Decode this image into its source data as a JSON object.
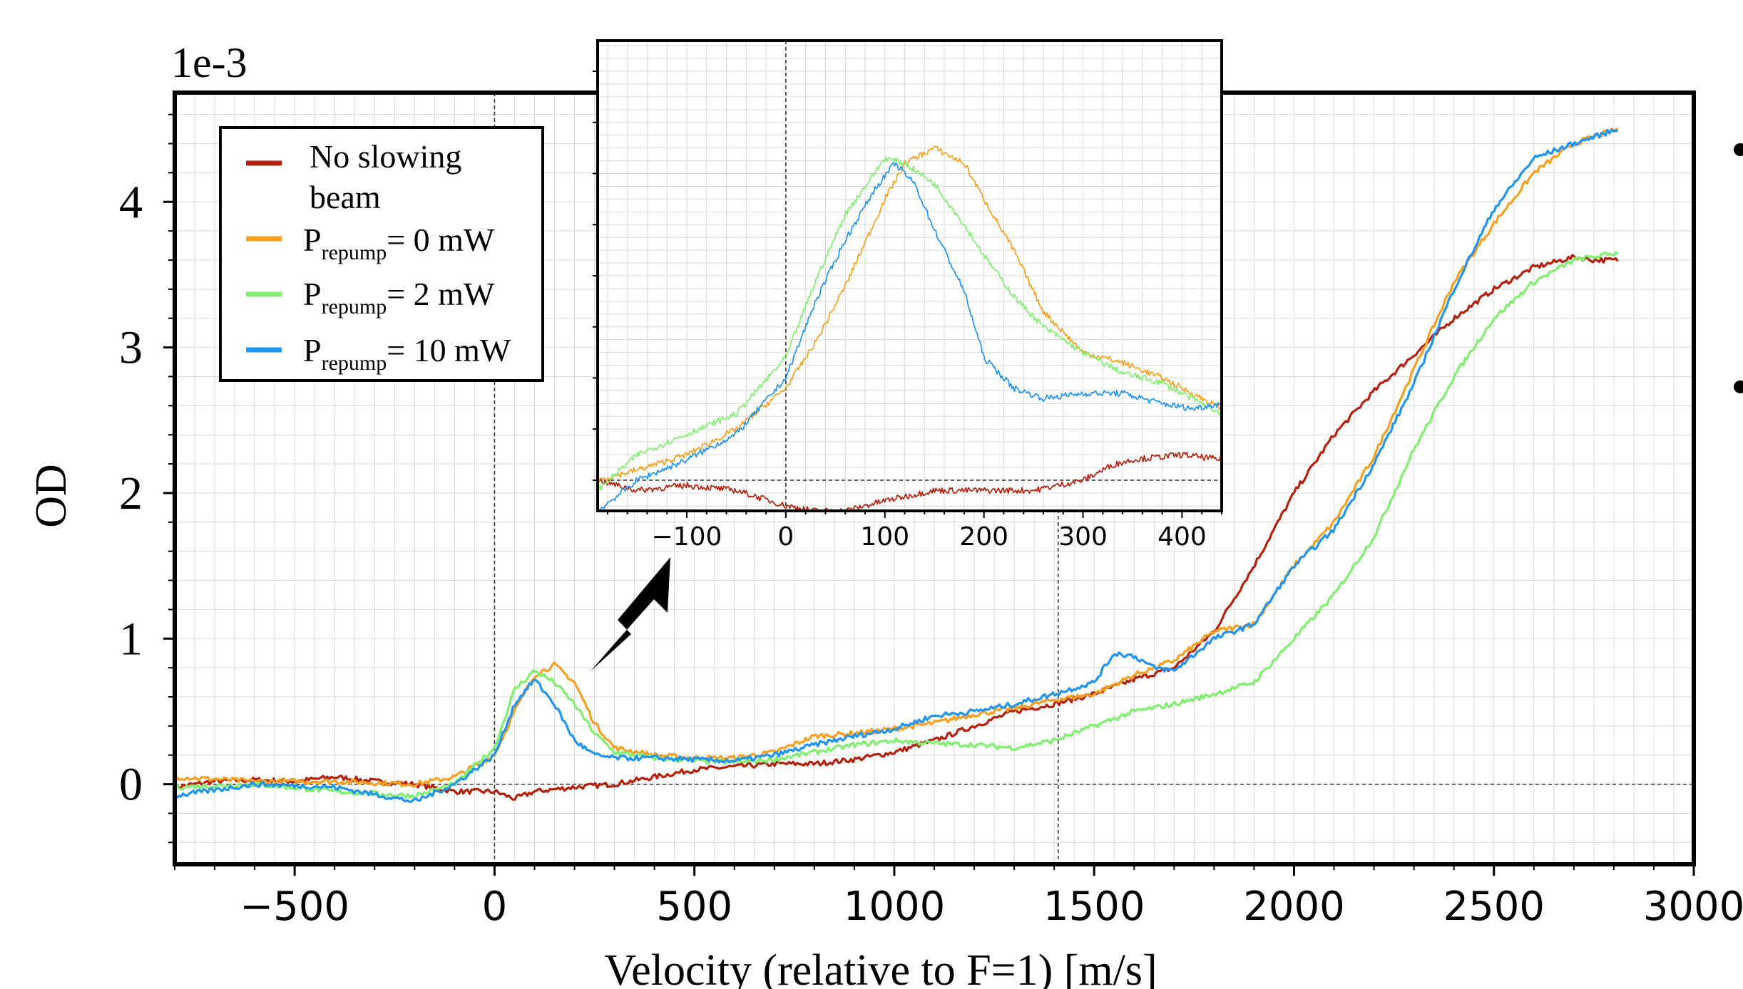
{
  "chart_data": [
    {
      "id": "main",
      "type": "line",
      "title": "",
      "xlabel": "Velocity (relative to F=1) [m/s]",
      "ylabel": "OD",
      "y_multiplier_label": "1e-3",
      "xlim": [
        -800,
        3000
      ],
      "ylim": [
        -0.55,
        4.75
      ],
      "xticks": [
        -500,
        0,
        500,
        1000,
        1500,
        2000,
        2500,
        3000
      ],
      "xtick_labels": [
        "−500",
        "0",
        "500",
        "1000",
        "1500",
        "2000",
        "2500",
        "3000"
      ],
      "yticks": [
        0,
        1,
        2,
        3,
        4
      ],
      "ytick_labels": [
        "0",
        "1",
        "2",
        "3",
        "4"
      ],
      "grid": true,
      "reference_lines": {
        "vertical": [
          0,
          1410
        ],
        "horizontal": [
          0
        ]
      },
      "legend_position": "top-left",
      "series": [
        {
          "key": "no_beam",
          "name": "No slowing beam",
          "legend_lines": [
            "No slowing",
            "beam"
          ],
          "color": "#b5200d",
          "x": [
            -800,
            -700,
            -600,
            -500,
            -400,
            -300,
            -200,
            -100,
            0,
            50,
            100,
            200,
            300,
            400,
            500,
            600,
            700,
            800,
            900,
            1000,
            1100,
            1200,
            1300,
            1400,
            1500,
            1600,
            1700,
            1800,
            1900,
            2000,
            2100,
            2200,
            2300,
            2400,
            2500,
            2600,
            2700,
            2750,
            2810
          ],
          "y": [
            -0.02,
            0.02,
            0.03,
            0.02,
            0.05,
            0.02,
            0.0,
            -0.05,
            -0.05,
            -0.1,
            -0.05,
            -0.02,
            0.0,
            0.05,
            0.1,
            0.12,
            0.14,
            0.14,
            0.17,
            0.22,
            0.3,
            0.4,
            0.5,
            0.55,
            0.62,
            0.72,
            0.8,
            1.05,
            1.5,
            2.0,
            2.4,
            2.7,
            2.95,
            3.2,
            3.4,
            3.55,
            3.62,
            3.6,
            3.6
          ]
        },
        {
          "key": "p0",
          "name": "P= 0 mW",
          "subscript": "repump",
          "color": "#f5a020",
          "x": [
            -800,
            -600,
            -400,
            -200,
            -100,
            0,
            50,
            100,
            150,
            200,
            250,
            300,
            400,
            500,
            600,
            700,
            800,
            900,
            1000,
            1100,
            1200,
            1300,
            1400,
            1500,
            1600,
            1700,
            1800,
            1900,
            2000,
            2100,
            2200,
            2300,
            2400,
            2500,
            2600,
            2700,
            2810
          ],
          "y": [
            0.05,
            0.02,
            0.02,
            0.0,
            0.05,
            0.2,
            0.5,
            0.75,
            0.82,
            0.7,
            0.42,
            0.25,
            0.2,
            0.18,
            0.18,
            0.22,
            0.33,
            0.35,
            0.38,
            0.42,
            0.48,
            0.52,
            0.58,
            0.62,
            0.75,
            0.85,
            1.05,
            1.1,
            1.5,
            1.8,
            2.25,
            2.85,
            3.45,
            3.85,
            4.2,
            4.4,
            4.5
          ]
        },
        {
          "key": "p2",
          "name": "P= 2 mW",
          "subscript": "repump",
          "color": "#80ef70",
          "x": [
            -800,
            -600,
            -400,
            -200,
            -100,
            0,
            50,
            100,
            150,
            200,
            250,
            300,
            400,
            500,
            600,
            700,
            800,
            900,
            1000,
            1100,
            1200,
            1300,
            1400,
            1500,
            1600,
            1700,
            1800,
            1900,
            2000,
            2100,
            2200,
            2300,
            2400,
            2500,
            2600,
            2700,
            2810
          ],
          "y": [
            -0.02,
            0.0,
            -0.05,
            -0.08,
            0.0,
            0.25,
            0.65,
            0.78,
            0.7,
            0.55,
            0.35,
            0.22,
            0.18,
            0.16,
            0.15,
            0.17,
            0.22,
            0.27,
            0.3,
            0.28,
            0.27,
            0.25,
            0.3,
            0.4,
            0.5,
            0.55,
            0.62,
            0.7,
            1.0,
            1.3,
            1.7,
            2.3,
            2.8,
            3.2,
            3.45,
            3.6,
            3.65
          ]
        },
        {
          "key": "p10",
          "name": "P= 10 mW",
          "subscript": "repump",
          "color": "#2094ef",
          "x": [
            -800,
            -600,
            -400,
            -200,
            -100,
            0,
            50,
            100,
            150,
            200,
            250,
            300,
            400,
            500,
            600,
            700,
            800,
            900,
            1000,
            1100,
            1200,
            1300,
            1400,
            1500,
            1550,
            1600,
            1650,
            1700,
            1800,
            1900,
            2000,
            2100,
            2200,
            2300,
            2400,
            2500,
            2600,
            2700,
            2810
          ],
          "y": [
            -0.08,
            0.0,
            -0.02,
            -0.12,
            0.0,
            0.2,
            0.55,
            0.72,
            0.55,
            0.3,
            0.2,
            0.18,
            0.18,
            0.17,
            0.16,
            0.2,
            0.27,
            0.33,
            0.38,
            0.47,
            0.5,
            0.55,
            0.62,
            0.7,
            0.9,
            0.88,
            0.8,
            0.78,
            1.0,
            1.1,
            1.5,
            1.75,
            2.2,
            2.75,
            3.4,
            3.95,
            4.3,
            4.4,
            4.5
          ]
        }
      ]
    },
    {
      "id": "inset",
      "type": "line",
      "title": "",
      "xlabel": "",
      "ylabel": "",
      "xlim": [
        -190,
        440
      ],
      "ylim": [
        -0.06,
        0.86
      ],
      "xticks": [
        -100,
        0,
        100,
        200,
        300,
        400
      ],
      "xtick_labels": [
        "−100",
        "0",
        "100",
        "200",
        "300",
        "400"
      ],
      "grid": true,
      "reference_lines": {
        "vertical": [
          0
        ],
        "horizontal": [
          0
        ]
      },
      "series": [
        {
          "key": "no_beam",
          "color": "#b5200d",
          "x": [
            -190,
            -150,
            -100,
            -50,
            0,
            30,
            60,
            100,
            150,
            200,
            250,
            300,
            330,
            350,
            400,
            440
          ],
          "y": [
            0.0,
            -0.02,
            -0.01,
            -0.02,
            -0.05,
            -0.06,
            -0.06,
            -0.04,
            -0.02,
            -0.02,
            -0.02,
            0.0,
            0.03,
            0.04,
            0.05,
            0.04
          ]
        },
        {
          "key": "p0",
          "color": "#f5a020",
          "x": [
            -190,
            -150,
            -100,
            -50,
            0,
            30,
            60,
            100,
            120,
            150,
            180,
            200,
            230,
            260,
            300,
            340,
            380,
            410,
            440
          ],
          "y": [
            0.0,
            0.02,
            0.05,
            0.1,
            0.18,
            0.27,
            0.38,
            0.55,
            0.62,
            0.65,
            0.62,
            0.55,
            0.45,
            0.33,
            0.25,
            0.23,
            0.2,
            0.17,
            0.14
          ]
        },
        {
          "key": "p2",
          "color": "#80ef70",
          "x": [
            -190,
            -150,
            -100,
            -50,
            0,
            30,
            60,
            100,
            120,
            150,
            180,
            200,
            230,
            260,
            300,
            340,
            380,
            410,
            440
          ],
          "y": [
            -0.02,
            0.05,
            0.09,
            0.13,
            0.24,
            0.39,
            0.52,
            0.63,
            0.62,
            0.58,
            0.5,
            0.44,
            0.36,
            0.3,
            0.25,
            0.21,
            0.19,
            0.16,
            0.13
          ]
        },
        {
          "key": "p10",
          "color": "#2094ef",
          "x": [
            -190,
            -150,
            -100,
            -50,
            0,
            30,
            60,
            90,
            110,
            130,
            150,
            180,
            200,
            230,
            260,
            300,
            340,
            380,
            410,
            440
          ],
          "y": [
            -0.06,
            0.0,
            0.04,
            0.09,
            0.2,
            0.35,
            0.47,
            0.57,
            0.62,
            0.58,
            0.49,
            0.37,
            0.24,
            0.18,
            0.16,
            0.17,
            0.17,
            0.15,
            0.14,
            0.15
          ]
        }
      ]
    }
  ]
}
